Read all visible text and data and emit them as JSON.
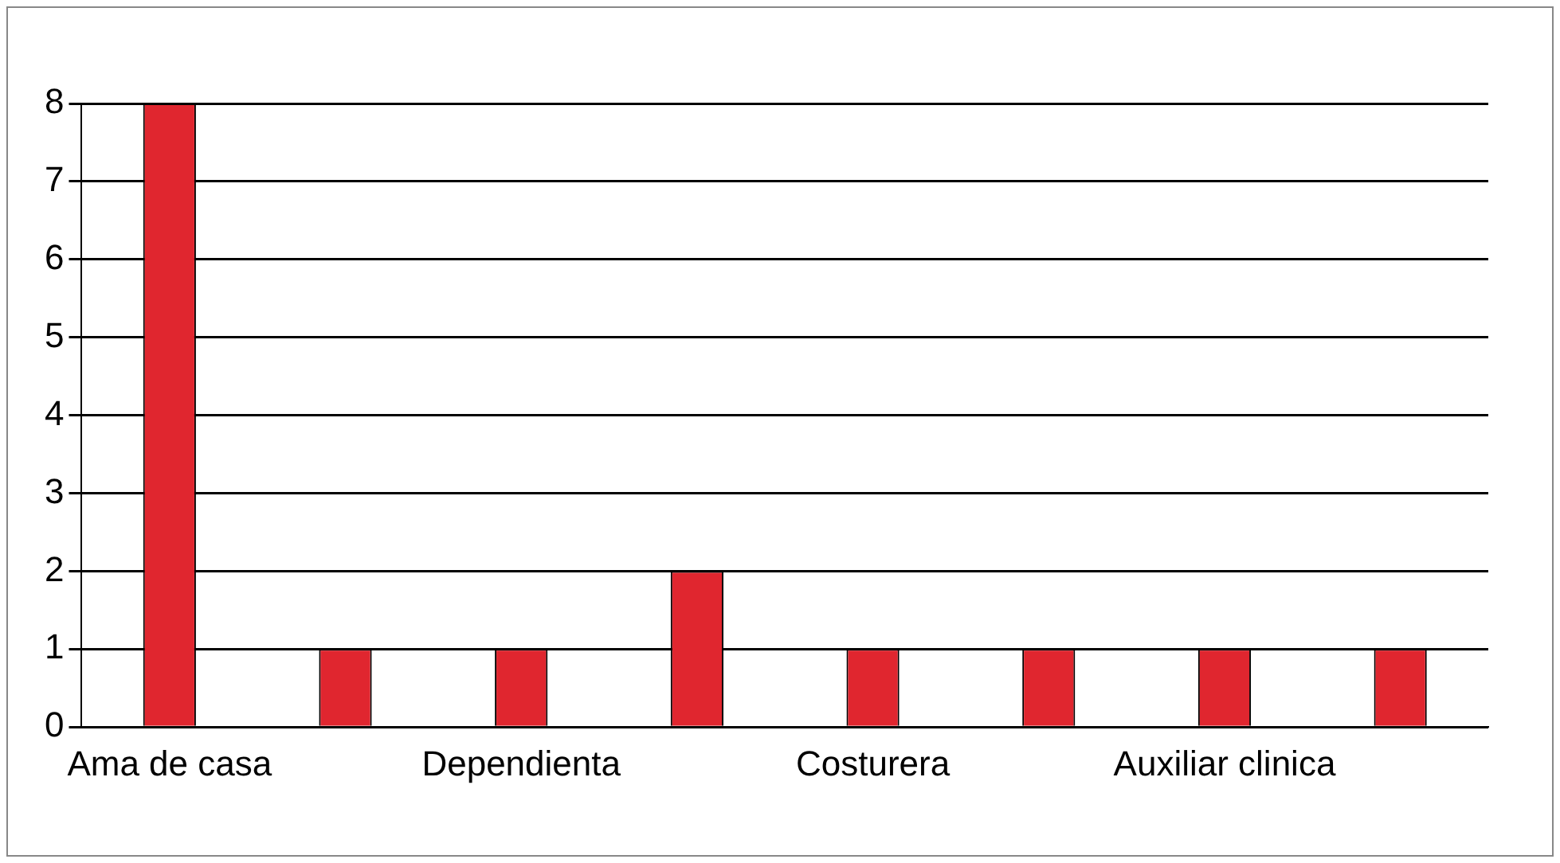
{
  "chart_data": {
    "type": "bar",
    "categories": [
      "Ama de casa",
      null,
      "Dependienta",
      null,
      "Costurera",
      null,
      "Auxiliar clinica",
      null
    ],
    "values": [
      8,
      1,
      1,
      2,
      1,
      1,
      1,
      1
    ],
    "color": "#e0262f",
    "ylim": [
      0,
      8
    ],
    "yticks": [
      0,
      1,
      2,
      3,
      4,
      5,
      6,
      7,
      8
    ],
    "grid": "y",
    "legend": false
  }
}
